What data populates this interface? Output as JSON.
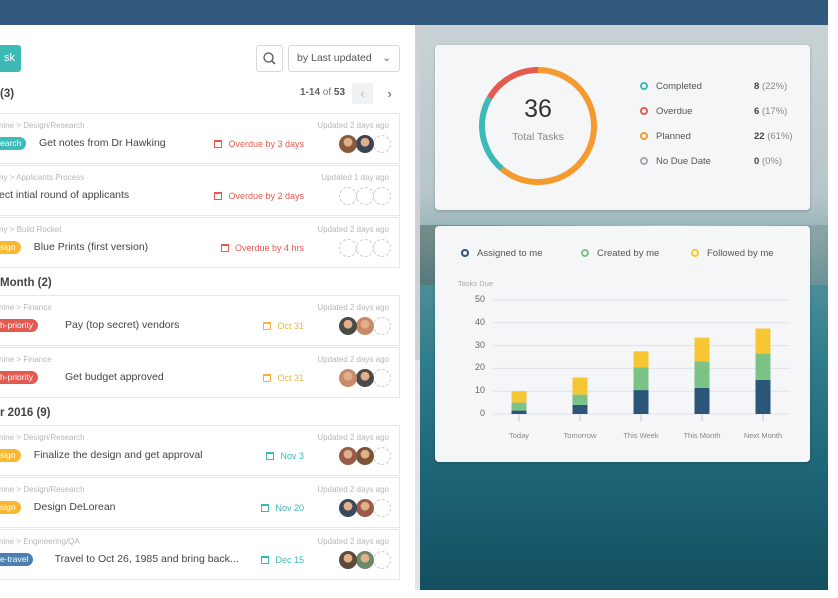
{
  "toolbar": {
    "add_label": "sk",
    "sort_label": "by Last updated"
  },
  "pager": {
    "range": "1-14",
    "of": "of",
    "total": "53"
  },
  "sections": [
    {
      "title": "(3)",
      "rows": [
        {
          "crumb": "nine  >  Design/Research",
          "updated": "Updated 2 days ago",
          "tag": "earch",
          "tag_color": "#3dbdb9",
          "title": "Get notes from Dr Hawking",
          "due": "Overdue by 3 days",
          "due_color": "#e8594f",
          "avatars": [
            "#8a5a3c",
            "#3a4456",
            null
          ]
        },
        {
          "crumb": "ny  >  Applicants Process",
          "updated": "Updated 1 day ago",
          "tag": null,
          "title": "ect intial round of applicants",
          "due": "Overdue by 2 days",
          "due_color": "#e8594f",
          "avatars": [
            null,
            null,
            null
          ]
        },
        {
          "crumb": "ny  >  Build Rocket",
          "updated": "Updated 2 days ago",
          "tag": "sign",
          "tag_color": "#f7b733",
          "title": "Blue Prints (first version)",
          "due": "Overdue by 4 hrs",
          "due_color": "#e8594f",
          "avatars": [
            null,
            null,
            null
          ]
        }
      ]
    },
    {
      "title": "Month (2)",
      "rows": [
        {
          "crumb": "nine  >  Finance",
          "updated": "Updated 2 days ago",
          "tag": "h-priority",
          "tag_color": "#e35a50",
          "title": "Pay (top secret) vendors",
          "due": "Oct 31",
          "due_color": "#f5b43a",
          "avatars": [
            "#4a4a48",
            "#c98a6a",
            null
          ]
        },
        {
          "crumb": "nine  >  Finance",
          "updated": "Updated 2 days ago",
          "tag": "h-priority",
          "tag_color": "#e35a50",
          "title": "Get budget approved",
          "due": "Oct 31",
          "due_color": "#f5b43a",
          "avatars": [
            "#c98a6a",
            "#4a4a48",
            null
          ]
        }
      ]
    },
    {
      "title": "r 2016 (9)",
      "rows": [
        {
          "crumb": "nine  >  Design/Research",
          "updated": "Updated 2 days ago",
          "tag": "sign",
          "tag_color": "#f7b733",
          "title": "Finalize the design and get approval",
          "due": "Nov 3",
          "due_color": "#3bb8b8",
          "avatars": [
            "#9a5a4a",
            "#7a5535",
            null
          ]
        },
        {
          "crumb": "nine  >  Design/Research",
          "updated": "Updated 2 days ago",
          "tag": "sign",
          "tag_color": "#f7b733",
          "title": "Design DeLorean",
          "due": "Nov 20",
          "due_color": "#3bb8b8",
          "avatars": [
            "#3a4a5a",
            "#9a5a4a",
            null
          ]
        },
        {
          "crumb": "nine  >  Engineering/QA",
          "updated": "Updated 2 days ago",
          "tag": "e-travel",
          "tag_color": "#4a7fb0",
          "title": "Travel to Oct 26, 1985 and bring back...",
          "due": "Dec 15",
          "due_color": "#3bb8b8",
          "avatars": [
            "#5a4a3a",
            "#6a8a6a",
            null
          ]
        }
      ]
    }
  ],
  "summary": {
    "total": "36",
    "total_label": "Total Tasks",
    "items": [
      {
        "label": "Completed",
        "count": "8",
        "pct": "(22%)",
        "color": "#3dbab6",
        "value": 8
      },
      {
        "label": "Overdue",
        "count": "6",
        "pct": "(17%)",
        "color": "#e35a50",
        "value": 6
      },
      {
        "label": "Planned",
        "count": "22",
        "pct": "(61%)",
        "color": "#f59a2e",
        "value": 22
      },
      {
        "label": "No Due Date",
        "count": "0",
        "pct": "(0%)",
        "color": "#a8a8ac",
        "value": 0
      }
    ]
  },
  "chart_data": {
    "type": "bar",
    "stacked": true,
    "ylabel": "Tasks Due",
    "ylim": [
      0,
      50
    ],
    "yticks": [
      "0",
      "10",
      "20",
      "30",
      "40",
      "50"
    ],
    "categories": [
      "Today",
      "Tomorrow",
      "This Week",
      "This Month",
      "Next Month"
    ],
    "series": [
      {
        "name": "Assigned to me",
        "color": "#2c557a",
        "values": [
          1.5,
          4,
          10.5,
          11.5,
          15
        ]
      },
      {
        "name": "Created by me",
        "color": "#7bc287",
        "values": [
          3.5,
          4.5,
          10,
          11.5,
          11.5
        ]
      },
      {
        "name": "Followed by me",
        "color": "#f6c634",
        "values": [
          5,
          7.5,
          7,
          10.5,
          11
        ]
      }
    ],
    "grid": true,
    "legend": "top"
  }
}
